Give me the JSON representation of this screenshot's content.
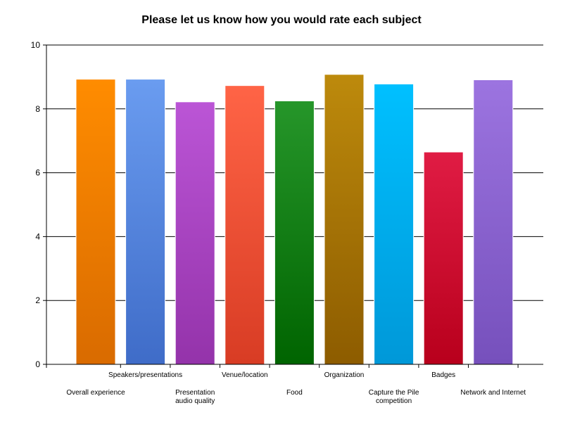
{
  "chart_data": {
    "type": "bar",
    "title": "Please let us know how you would rate each subject",
    "xlabel": "",
    "ylabel": "",
    "ylim": [
      0,
      10
    ],
    "yticks": [
      0,
      2,
      4,
      6,
      8,
      10
    ],
    "grid": true,
    "categories": [
      "Overall experience",
      "Speakers/presentations",
      "Presentation audio quality",
      "Venue/location",
      "Food",
      "Organization",
      "Capture the Pile competition",
      "Badges",
      "Network and Internet"
    ],
    "category_label_lines": [
      [
        "Overall experience"
      ],
      [
        "Speakers/presentations"
      ],
      [
        "Presentation",
        "audio quality"
      ],
      [
        "Venue/location"
      ],
      [
        "Food"
      ],
      [
        "Organization"
      ],
      [
        "Capture the Pile",
        "competition"
      ],
      [
        "Badges"
      ],
      [
        "Network and Internet"
      ]
    ],
    "values": [
      8.93,
      8.93,
      8.22,
      8.73,
      8.25,
      9.08,
      8.78,
      6.65,
      8.91
    ],
    "colors": [
      [
        "#ff8c00",
        "#d96b00"
      ],
      [
        "#6a9cf0",
        "#3f6cc8"
      ],
      [
        "#bb55d6",
        "#9433aa"
      ],
      [
        "#ff6446",
        "#d83c24"
      ],
      [
        "#26962a",
        "#006400"
      ],
      [
        "#bd8a0c",
        "#8d5c00"
      ],
      [
        "#00c0ff",
        "#0098d8"
      ],
      [
        "#e01c44",
        "#b8001c"
      ],
      [
        "#9c74e0",
        "#7650bc"
      ]
    ]
  }
}
